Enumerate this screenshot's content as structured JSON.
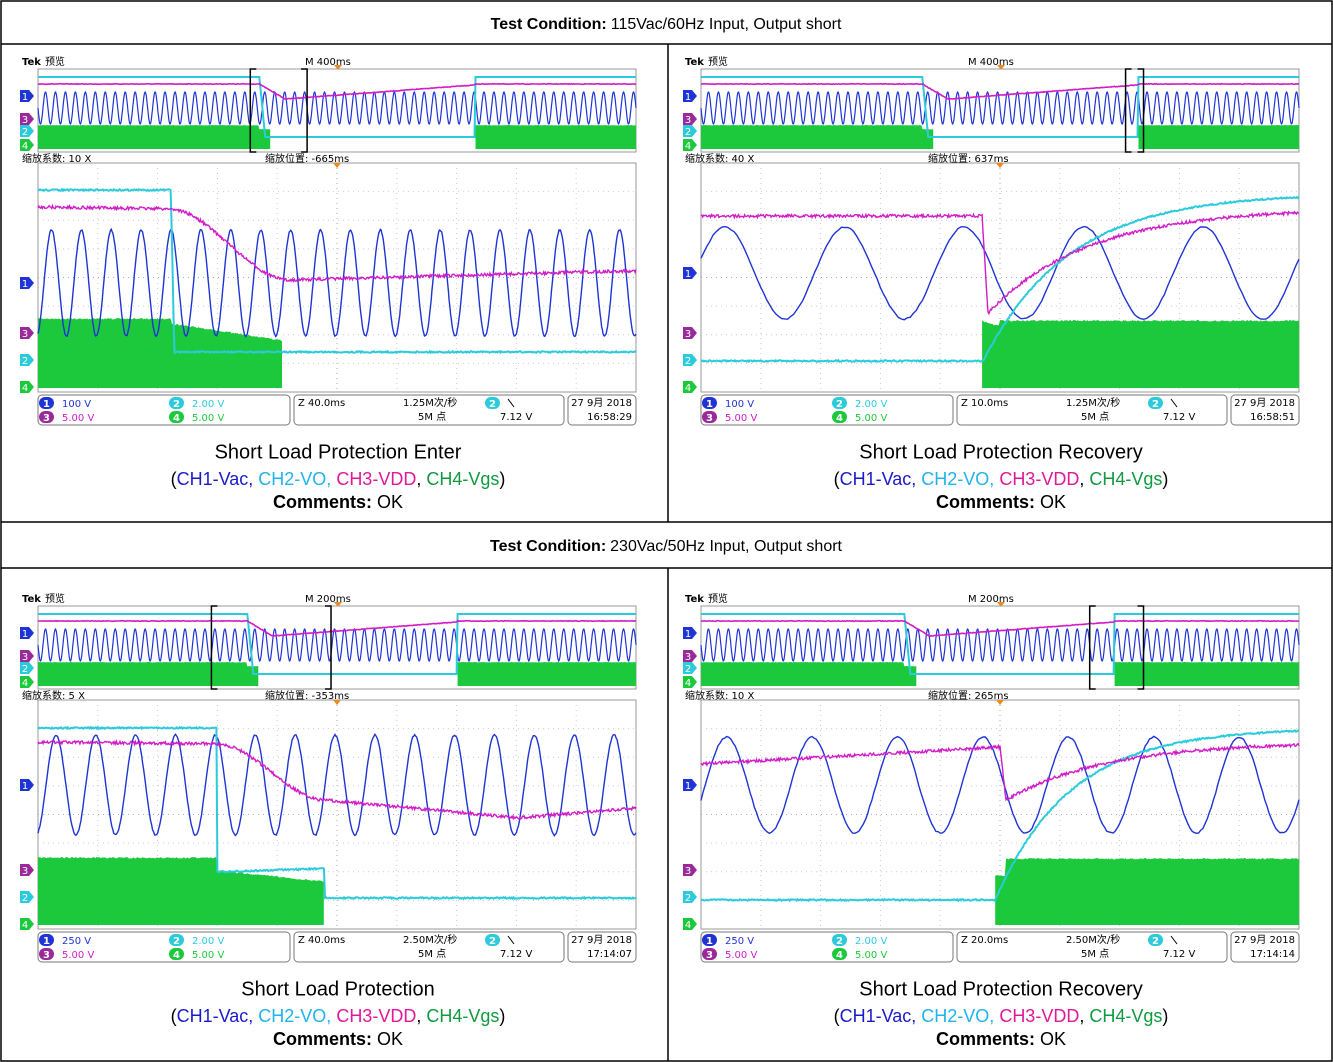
{
  "sections": [
    {
      "condition": {
        "label": "Test Condition:",
        "text": "115Vac/60Hz Input, Output short"
      },
      "captures": [
        {
          "scope": {
            "brand": "Tek",
            "mode": "预览",
            "timebase": "M 400ms",
            "zoom_factor": "缩放系数: 10 X",
            "zoom_position": "缩放位置: -665ms",
            "channels": [
              {
                "id": "1",
                "scale": "100 V",
                "color": "#1f34d4"
              },
              {
                "id": "2",
                "scale": "2.00 V",
                "color": "#2ccbdc"
              },
              {
                "id": "3",
                "scale": "5.00 V",
                "color": "#d21cc8"
              },
              {
                "id": "4",
                "scale": "5.00 V",
                "color": "#1cc83c"
              }
            ],
            "zoom_time": "Z 40.0ms",
            "sample_rate": "1.25M次/秒",
            "record_length": "5M 点",
            "trigger_level": "7.12 V",
            "date": "27 9月 2018",
            "time": "16:58:29"
          },
          "title": "Short Load Protection Enter",
          "legend": [
            {
              "text": "(",
              "color": "#000000"
            },
            {
              "text": "CH1-Vac,",
              "color": "#1a1acc"
            },
            {
              "text": " CH2-VO,",
              "color": "#1fb4ec"
            },
            {
              "text": " CH3-VDD",
              "color": "#e0189a"
            },
            {
              "text": ", ",
              "color": "#000000"
            },
            {
              "text": "CH4-Vgs",
              "color": "#109a40"
            },
            {
              "text": ")",
              "color": "#000000"
            }
          ],
          "comments": {
            "label": "Comments:",
            "text": "OK"
          }
        },
        {
          "scope": {
            "brand": "Tek",
            "mode": "预览",
            "timebase": "M 400ms",
            "zoom_factor": "缩放系数: 40 X",
            "zoom_position": "缩放位置: 637ms",
            "channels": [
              {
                "id": "1",
                "scale": "100 V",
                "color": "#1f34d4"
              },
              {
                "id": "2",
                "scale": "2.00 V",
                "color": "#2ccbdc"
              },
              {
                "id": "3",
                "scale": "5.00 V",
                "color": "#d21cc8"
              },
              {
                "id": "4",
                "scale": "5.00 V",
                "color": "#1cc83c"
              }
            ],
            "zoom_time": "Z 10.0ms",
            "sample_rate": "1.25M次/秒",
            "record_length": "5M 点",
            "trigger_level": "7.12 V",
            "date": "27 9月 2018",
            "time": "16:58:51"
          },
          "title": "Short Load Protection Recovery",
          "legend": [
            {
              "text": "(",
              "color": "#000000"
            },
            {
              "text": "CH1-Vac,",
              "color": "#1a1acc"
            },
            {
              "text": " CH2-VO,",
              "color": "#1fb4ec"
            },
            {
              "text": " CH3-VDD",
              "color": "#e0189a"
            },
            {
              "text": ", ",
              "color": "#000000"
            },
            {
              "text": "CH4-Vgs",
              "color": "#109a40"
            },
            {
              "text": ")",
              "color": "#000000"
            }
          ],
          "comments": {
            "label": "Comments:",
            "text": "OK"
          }
        }
      ]
    },
    {
      "condition": {
        "label": "Test Condition:",
        "text": "230Vac/50Hz Input, Output short"
      },
      "captures": [
        {
          "scope": {
            "brand": "Tek",
            "mode": "预览",
            "timebase": "M 200ms",
            "zoom_factor": "缩放系数: 5 X",
            "zoom_position": "缩放位置: -353ms",
            "channels": [
              {
                "id": "1",
                "scale": "250 V",
                "color": "#1f34d4"
              },
              {
                "id": "2",
                "scale": "2.00 V",
                "color": "#2ccbdc"
              },
              {
                "id": "3",
                "scale": "5.00 V",
                "color": "#d21cc8"
              },
              {
                "id": "4",
                "scale": "5.00 V",
                "color": "#1cc83c"
              }
            ],
            "zoom_time": "Z 40.0ms",
            "sample_rate": "2.50M次/秒",
            "record_length": "5M 点",
            "trigger_level": "7.12 V",
            "date": "27 9月 2018",
            "time": "17:14:07"
          },
          "title": "Short Load Protection",
          "legend": [
            {
              "text": "(",
              "color": "#000000"
            },
            {
              "text": "CH1-Vac,",
              "color": "#1a1acc"
            },
            {
              "text": " CH2-VO,",
              "color": "#1fb4ec"
            },
            {
              "text": " CH3-VDD",
              "color": "#e0189a"
            },
            {
              "text": ", ",
              "color": "#000000"
            },
            {
              "text": "CH4-Vgs",
              "color": "#109a40"
            },
            {
              "text": ")",
              "color": "#000000"
            }
          ],
          "comments": {
            "label": "Comments:",
            "text": "OK"
          }
        },
        {
          "scope": {
            "brand": "Tek",
            "mode": "预览",
            "timebase": "M 200ms",
            "zoom_factor": "缩放系数: 10 X",
            "zoom_position": "缩放位置: 265ms",
            "channels": [
              {
                "id": "1",
                "scale": "250 V",
                "color": "#1f34d4"
              },
              {
                "id": "2",
                "scale": "2.00 V",
                "color": "#2ccbdc"
              },
              {
                "id": "3",
                "scale": "5.00 V",
                "color": "#d21cc8"
              },
              {
                "id": "4",
                "scale": "5.00 V",
                "color": "#1cc83c"
              }
            ],
            "zoom_time": "Z 20.0ms",
            "sample_rate": "2.50M次/秒",
            "record_length": "5M 点",
            "trigger_level": "7.12 V",
            "date": "27 9月 2018",
            "time": "17:14:14"
          },
          "title": "Short Load Protection Recovery",
          "legend": [
            {
              "text": "(",
              "color": "#000000"
            },
            {
              "text": "CH1-Vac,",
              "color": "#1a1acc"
            },
            {
              "text": " CH2-VO,",
              "color": "#1fb4ec"
            },
            {
              "text": " CH3-VDD",
              "color": "#e0189a"
            },
            {
              "text": ", ",
              "color": "#000000"
            },
            {
              "text": "CH4-Vgs",
              "color": "#109a40"
            },
            {
              "text": ")",
              "color": "#000000"
            }
          ],
          "comments": {
            "label": "Comments:",
            "text": "OK"
          }
        }
      ]
    }
  ]
}
